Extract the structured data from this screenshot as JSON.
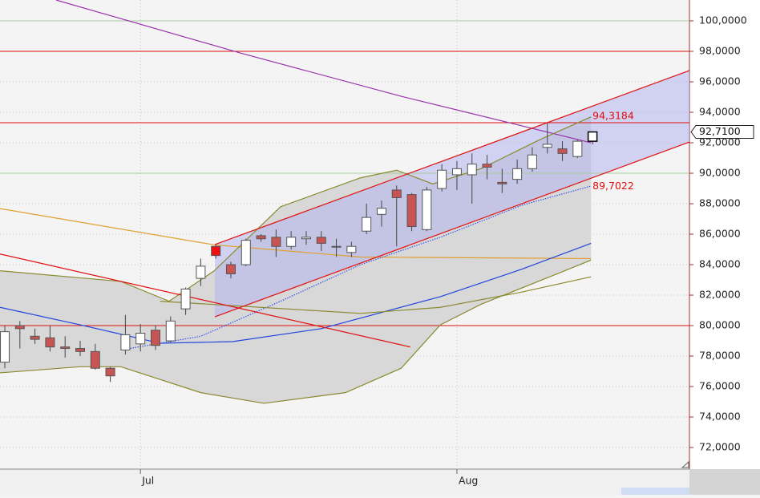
{
  "chart_data": {
    "type": "candlestick",
    "x": [
      0,
      1,
      2,
      3,
      4,
      5,
      6,
      7,
      8,
      9,
      10,
      11,
      12,
      13,
      14,
      15,
      16,
      17,
      18,
      19,
      20,
      21,
      22,
      23,
      24,
      25,
      26,
      27,
      28,
      29,
      30,
      31,
      32,
      33,
      34,
      35,
      36,
      37,
      38,
      39
    ],
    "open": [
      77.6,
      80.0,
      79.3,
      79.2,
      78.6,
      78.5,
      78.3,
      77.2,
      78.4,
      78.8,
      79.7,
      79.0,
      81.1,
      83.1,
      85.2,
      84.0,
      84.0,
      85.9,
      85.8,
      85.2,
      85.7,
      85.8,
      85.2,
      84.8,
      86.2,
      87.3,
      88.9,
      88.6,
      86.3,
      89.0,
      89.9,
      89.9,
      90.6,
      89.4,
      89.6,
      90.3,
      91.7,
      91.6,
      91.1,
      92.1
    ],
    "high": [
      80.0,
      80.3,
      79.8,
      80.0,
      79.3,
      79.0,
      78.8,
      77.3,
      80.7,
      80.1,
      80.0,
      80.6,
      82.5,
      84.4,
      85.3,
      84.2,
      85.7,
      86.0,
      86.3,
      86.2,
      86.2,
      86.2,
      85.7,
      85.5,
      88.0,
      88.2,
      89.2,
      88.7,
      89.1,
      90.6,
      90.8,
      91.3,
      91.2,
      90.3,
      90.9,
      91.7,
      93.3,
      92.1,
      92.2,
      92.75
    ],
    "low": [
      77.2,
      78.5,
      78.8,
      78.3,
      77.9,
      78.0,
      77.1,
      76.3,
      78.1,
      78.3,
      78.4,
      78.9,
      80.7,
      82.6,
      84.4,
      83.1,
      83.9,
      85.5,
      84.5,
      85.0,
      85.3,
      84.9,
      84.5,
      84.5,
      86.0,
      86.5,
      85.2,
      86.2,
      86.2,
      88.8,
      88.9,
      88.0,
      89.6,
      88.7,
      89.3,
      90.1,
      91.3,
      90.8,
      91.0,
      91.9
    ],
    "close": [
      79.6,
      79.8,
      79.1,
      78.6,
      78.5,
      78.3,
      77.2,
      76.7,
      79.4,
      79.5,
      78.7,
      80.3,
      82.4,
      83.9,
      84.6,
      83.4,
      85.6,
      85.7,
      85.2,
      85.8,
      85.8,
      85.4,
      85.2,
      85.2,
      87.1,
      87.7,
      88.4,
      86.5,
      88.9,
      90.2,
      90.3,
      90.6,
      90.4,
      89.3,
      90.3,
      91.2,
      91.9,
      91.3,
      92.1,
      92.71
    ],
    "up_color": "#ffffff",
    "down_color": "#c95454",
    "highlight": {
      "index": 14,
      "color": "#ee1111"
    },
    "xlim": [
      -0.32,
      45.43
    ],
    "ylim": [
      70.58,
      101.37
    ],
    "xticks": [
      {
        "value": 9,
        "label": "Jul"
      },
      {
        "value": 30,
        "label": "Aug"
      }
    ],
    "yticks": [
      {
        "value": 72,
        "label": "72,0000"
      },
      {
        "value": 74,
        "label": "74,0000"
      },
      {
        "value": 76,
        "label": "76,0000"
      },
      {
        "value": 78,
        "label": "78,0000"
      },
      {
        "value": 80,
        "label": "80,0000"
      },
      {
        "value": 82,
        "label": "82,0000"
      },
      {
        "value": 84,
        "label": "84,0000"
      },
      {
        "value": 86,
        "label": "86,0000"
      },
      {
        "value": 88,
        "label": "88,0000"
      },
      {
        "value": 90,
        "label": "90,0000"
      },
      {
        "value": 92,
        "label": "92,0000"
      },
      {
        "value": 94,
        "label": "94,0000"
      },
      {
        "value": 96,
        "label": "96,0000"
      },
      {
        "value": 98,
        "label": "98,0000"
      },
      {
        "value": 100,
        "label": "100,0000"
      }
    ],
    "grid": true,
    "overlays": [
      {
        "color": "#9933aa",
        "x": [
          3.4,
          15.6,
          26.3,
          38.9
        ],
        "values": [
          101.37,
          97.9,
          95.05,
          92.0
        ]
      },
      {
        "color": "#e0a030",
        "x": [
          -0.32,
          13.9,
          23.6,
          38.9
        ],
        "values": [
          87.68,
          85.3,
          84.5,
          84.4
        ]
      },
      {
        "color": "#2244dd",
        "x": [
          -0.32,
          5,
          10.3,
          15.1,
          21,
          28.9,
          34.3,
          38.9
        ],
        "values": [
          81.2,
          80.05,
          78.84,
          78.95,
          79.8,
          81.9,
          83.7,
          85.4
        ]
      },
      {
        "color": "#3355ee",
        "dotted": true,
        "x": [
          7.7,
          13,
          18.3,
          23.6,
          28.9,
          34.3,
          38.9
        ],
        "values": [
          78.4,
          79.3,
          81.6,
          84.0,
          85.8,
          87.9,
          89.16
        ]
      },
      {
        "color": "#8a8a30",
        "x": [
          -0.32,
          7.7,
          10.9,
          13.9,
          18.3,
          23.6,
          26,
          28.4,
          31.6,
          35.5,
          38.9
        ],
        "values": [
          83.6,
          82.9,
          81.6,
          83.6,
          87.8,
          89.7,
          90.2,
          89.3,
          90.3,
          92.2,
          93.7
        ]
      },
      {
        "color": "#8a8a30",
        "x": [
          -0.32,
          5,
          7.7,
          13,
          17.2,
          22.6,
          26.3,
          28.9,
          31.6,
          36.9,
          38.9
        ],
        "values": [
          76.9,
          77.3,
          77.3,
          75.6,
          74.9,
          75.6,
          77.2,
          80.05,
          81.4,
          83.5,
          84.3
        ]
      },
      {
        "color": "#8a8a30",
        "x": [
          10.3,
          23.6,
          28.9,
          34.3,
          38.9
        ],
        "values": [
          81.6,
          80.8,
          81.2,
          82.2,
          83.2
        ]
      },
      {
        "color": "#e01010",
        "x": [
          -0.32,
          26.9
        ],
        "values": [
          84.7,
          78.6
        ]
      },
      {
        "color": "#e01010",
        "x": [
          13.94,
          45.43
        ],
        "values": [
          85.32,
          96.74
        ]
      },
      {
        "color": "#e01010",
        "x": [
          13.94,
          45.43
        ],
        "values": [
          80.58,
          92.05
        ]
      }
    ],
    "fills": [
      {
        "between": [
          4,
          5
        ],
        "color": "#d8d8d8"
      },
      {
        "between": [
          8,
          9
        ],
        "color": "#b4b4ee"
      }
    ],
    "hlines": [
      {
        "value": 100,
        "color": "#a8cca0"
      },
      {
        "value": 98,
        "color": "#e01010"
      },
      {
        "value": 93.32,
        "color": "#e01010"
      },
      {
        "value": 90,
        "color": "#a8cca0"
      },
      {
        "value": 80,
        "color": "#e01010"
      }
    ],
    "annotations": [
      {
        "value": 94.3184,
        "label": "94,3184"
      },
      {
        "value": 89.7022,
        "label": "89,7022"
      }
    ],
    "price_label": {
      "value": 92.71,
      "label": "92,7100"
    }
  }
}
